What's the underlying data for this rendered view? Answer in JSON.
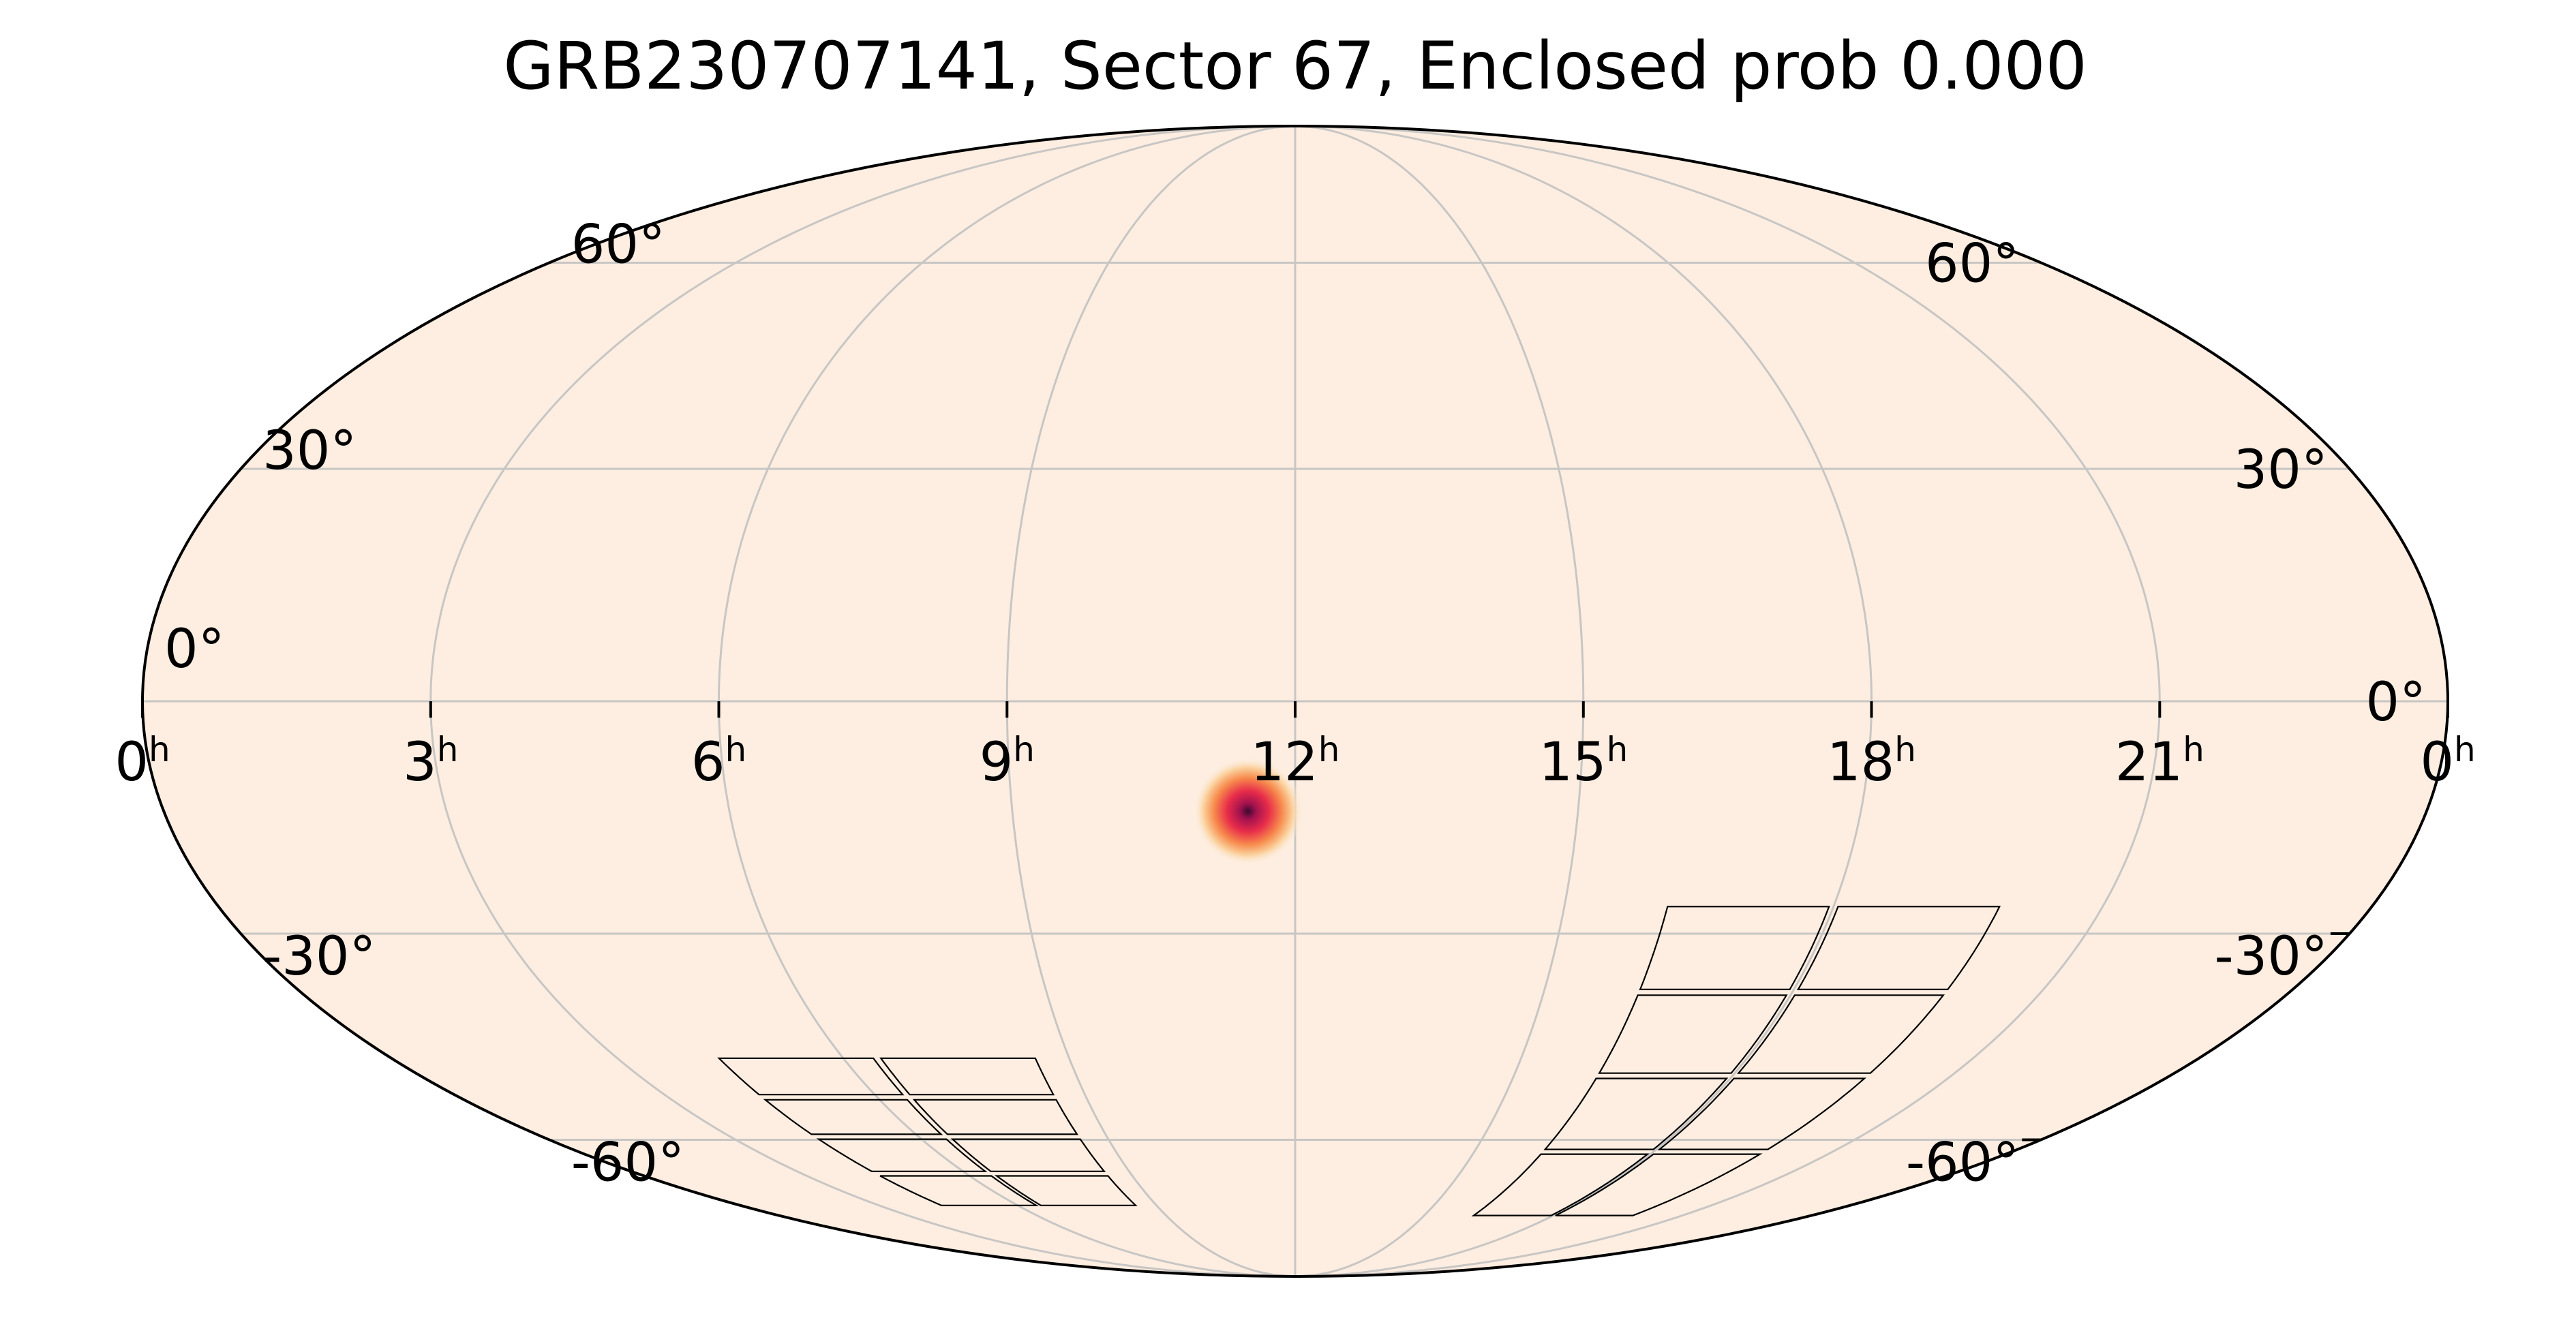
{
  "chart_data": {
    "type": "heatmap",
    "projection": "mollweide",
    "title": "GRB230707141, Sector 67, Enclosed prob 0.000",
    "ra_ticks": [
      {
        "label": "0",
        "unit": "h",
        "ra_hours": 24
      },
      {
        "label": "21",
        "unit": "h",
        "ra_hours": 21
      },
      {
        "label": "18",
        "unit": "h",
        "ra_hours": 18
      },
      {
        "label": "15",
        "unit": "h",
        "ra_hours": 15
      },
      {
        "label": "12",
        "unit": "h",
        "ra_hours": 12
      },
      {
        "label": "9",
        "unit": "h",
        "ra_hours": 9
      },
      {
        "label": "6",
        "unit": "h",
        "ra_hours": 6
      },
      {
        "label": "3",
        "unit": "h",
        "ra_hours": 3
      },
      {
        "label": "0",
        "unit": "h",
        "ra_hours": 0
      }
    ],
    "dec_ticks_left": [
      {
        "label": "60°",
        "dec": 60
      },
      {
        "label": "30°",
        "dec": 30
      },
      {
        "label": "0°",
        "dec": 0
      },
      {
        "label": "-30°",
        "dec": -30
      },
      {
        "label": "-60°",
        "dec": -60
      }
    ],
    "dec_ticks_right": [
      {
        "label": "60°",
        "dec": 60
      },
      {
        "label": "30°",
        "dec": 30
      },
      {
        "label": "0°",
        "dec": 0
      },
      {
        "label": "-30°",
        "dec": -30
      },
      {
        "label": "-60°",
        "dec": -60
      }
    ],
    "ra_grid_hours": [
      0,
      3,
      6,
      9,
      12,
      15,
      18,
      21,
      24
    ],
    "dec_grid_degrees": [
      -60,
      -30,
      0,
      30,
      60
    ],
    "grid": true,
    "probability_peak": {
      "ra_hours": 11.5,
      "dec": -14,
      "sigma_deg": 4
    },
    "colormap": [
      "#fdeee1",
      "#fbd3a0",
      "#f78a4c",
      "#e82c4a",
      "#a3124f",
      "#3c0a31"
    ],
    "background_color": "#fdeee1",
    "footprint_cameras": [
      {
        "ra_min": 16.1,
        "ra_max": 19.9,
        "dec_min": -74,
        "dec_max": -26
      },
      {
        "ra_min": 4.3,
        "ra_max": 8.6,
        "dec_min": -72,
        "dec_max": -47
      }
    ]
  }
}
